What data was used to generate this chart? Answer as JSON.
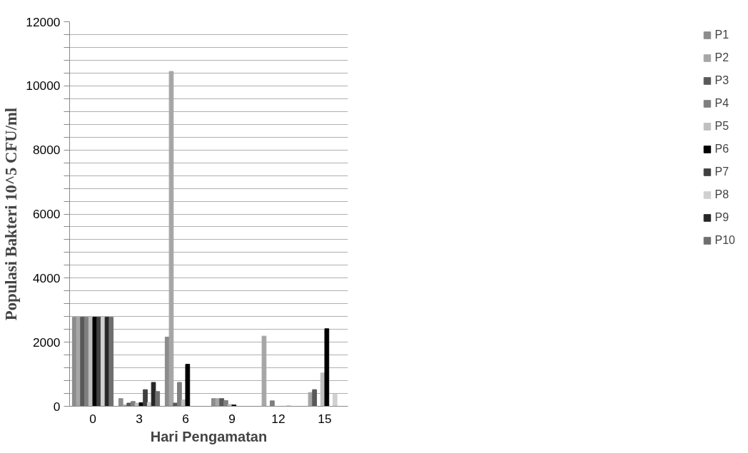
{
  "chart_data": {
    "type": "bar",
    "xlabel": "Hari Pengamatan",
    "ylabel": "Populasi Bakteri 10^5 CFU/ml",
    "categories": [
      "0",
      "3",
      "6",
      "9",
      "12",
      "15"
    ],
    "ylim": [
      0,
      12000
    ],
    "yticks": [
      0,
      {
        "value": 400,
        "label": null
      },
      {
        "value": 800,
        "label": null
      },
      {
        "value": 1200,
        "label": null
      },
      {
        "value": 1600,
        "label": null
      },
      2000,
      {
        "value": 2400,
        "label": null
      },
      {
        "value": 2800,
        "label": null
      },
      {
        "value": 3200,
        "label": null
      },
      {
        "value": 3600,
        "label": null
      },
      4000,
      {
        "value": 4400,
        "label": null
      },
      {
        "value": 4800,
        "label": null
      },
      {
        "value": 5200,
        "label": null
      },
      {
        "value": 5600,
        "label": null
      },
      6000,
      {
        "value": 6400,
        "label": null
      },
      {
        "value": 6800,
        "label": null
      },
      {
        "value": 7200,
        "label": null
      },
      {
        "value": 7600,
        "label": null
      },
      8000,
      {
        "value": 8400,
        "label": null
      },
      {
        "value": 8800,
        "label": null
      },
      {
        "value": 9200,
        "label": null
      },
      {
        "value": 9600,
        "label": null
      },
      10000,
      {
        "value": 10400,
        "label": null
      },
      {
        "value": 10800,
        "label": null
      },
      {
        "value": 11200,
        "label": null
      },
      {
        "value": 11600,
        "label": null
      },
      12000
    ],
    "grid": "y",
    "legend": "right",
    "series": [
      {
        "name": "P1",
        "color": "#8c8c8c",
        "values": [
          2780,
          240,
          2160,
          240,
          0,
          0
        ]
      },
      {
        "name": "P2",
        "color": "#a6a6a6",
        "values": [
          2780,
          40,
          10450,
          240,
          2190,
          430
        ]
      },
      {
        "name": "P3",
        "color": "#595959",
        "values": [
          2780,
          100,
          100,
          240,
          0,
          520
        ]
      },
      {
        "name": "P4",
        "color": "#7f7f7f",
        "values": [
          2780,
          150,
          745,
          180,
          170,
          0
        ]
      },
      {
        "name": "P5",
        "color": "#bfbfbf",
        "values": [
          2780,
          100,
          200,
          60,
          0,
          1040
        ]
      },
      {
        "name": "P6",
        "color": "#000000",
        "values": [
          2780,
          110,
          1310,
          40,
          0,
          2420
        ]
      },
      {
        "name": "P7",
        "color": "#404040",
        "values": [
          2780,
          520,
          0,
          0,
          0,
          0
        ]
      },
      {
        "name": "P8",
        "color": "#d0d0d0",
        "values": [
          2780,
          120,
          0,
          0,
          20,
          380
        ]
      },
      {
        "name": "P9",
        "color": "#262626",
        "values": [
          2780,
          745,
          0,
          0,
          0,
          0
        ]
      },
      {
        "name": "P10",
        "color": "#6e6e6e",
        "values": [
          2780,
          460,
          0,
          0,
          0,
          0
        ]
      }
    ]
  }
}
